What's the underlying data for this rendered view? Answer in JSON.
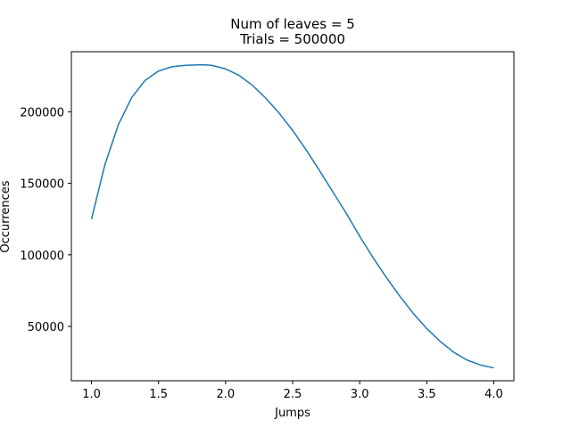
{
  "chart_data": {
    "type": "line",
    "title": "Num of leaves = 5",
    "subtitle": "Trials = 500000",
    "xlabel": "Jumps",
    "ylabel": "Occurrences",
    "xlim": [
      0.85,
      4.15
    ],
    "ylim": [
      12000,
      242000
    ],
    "xticks": [
      1.0,
      1.5,
      2.0,
      2.5,
      3.0,
      3.5,
      4.0
    ],
    "xtick_labels": [
      "1.0",
      "1.5",
      "2.0",
      "2.5",
      "3.0",
      "3.5",
      "4.0"
    ],
    "yticks": [
      50000,
      100000,
      150000,
      200000
    ],
    "ytick_labels": [
      "50000",
      "100000",
      "150000",
      "200000"
    ],
    "grid": false,
    "colors": {
      "series": "#1f77b4",
      "axes": "#000000",
      "background": "#ffffff"
    },
    "series": [
      {
        "x": [
          1.0,
          1.1,
          1.2,
          1.3,
          1.4,
          1.5,
          1.6,
          1.7,
          1.8,
          1.85,
          1.9,
          2.0,
          2.1,
          2.2,
          2.3,
          2.4,
          2.5,
          2.6,
          2.7,
          2.8,
          2.9,
          3.0,
          3.1,
          3.2,
          3.3,
          3.4,
          3.5,
          3.6,
          3.7,
          3.8,
          3.9,
          4.0
        ],
        "y": [
          125000,
          163000,
          191000,
          210000,
          222000,
          228500,
          231500,
          232500,
          232800,
          232800,
          232400,
          230000,
          225500,
          218500,
          209500,
          199000,
          187000,
          173500,
          159000,
          144000,
          129000,
          113000,
          98000,
          84000,
          71000,
          59000,
          48500,
          39500,
          32000,
          26500,
          23000,
          21000
        ]
      }
    ]
  }
}
